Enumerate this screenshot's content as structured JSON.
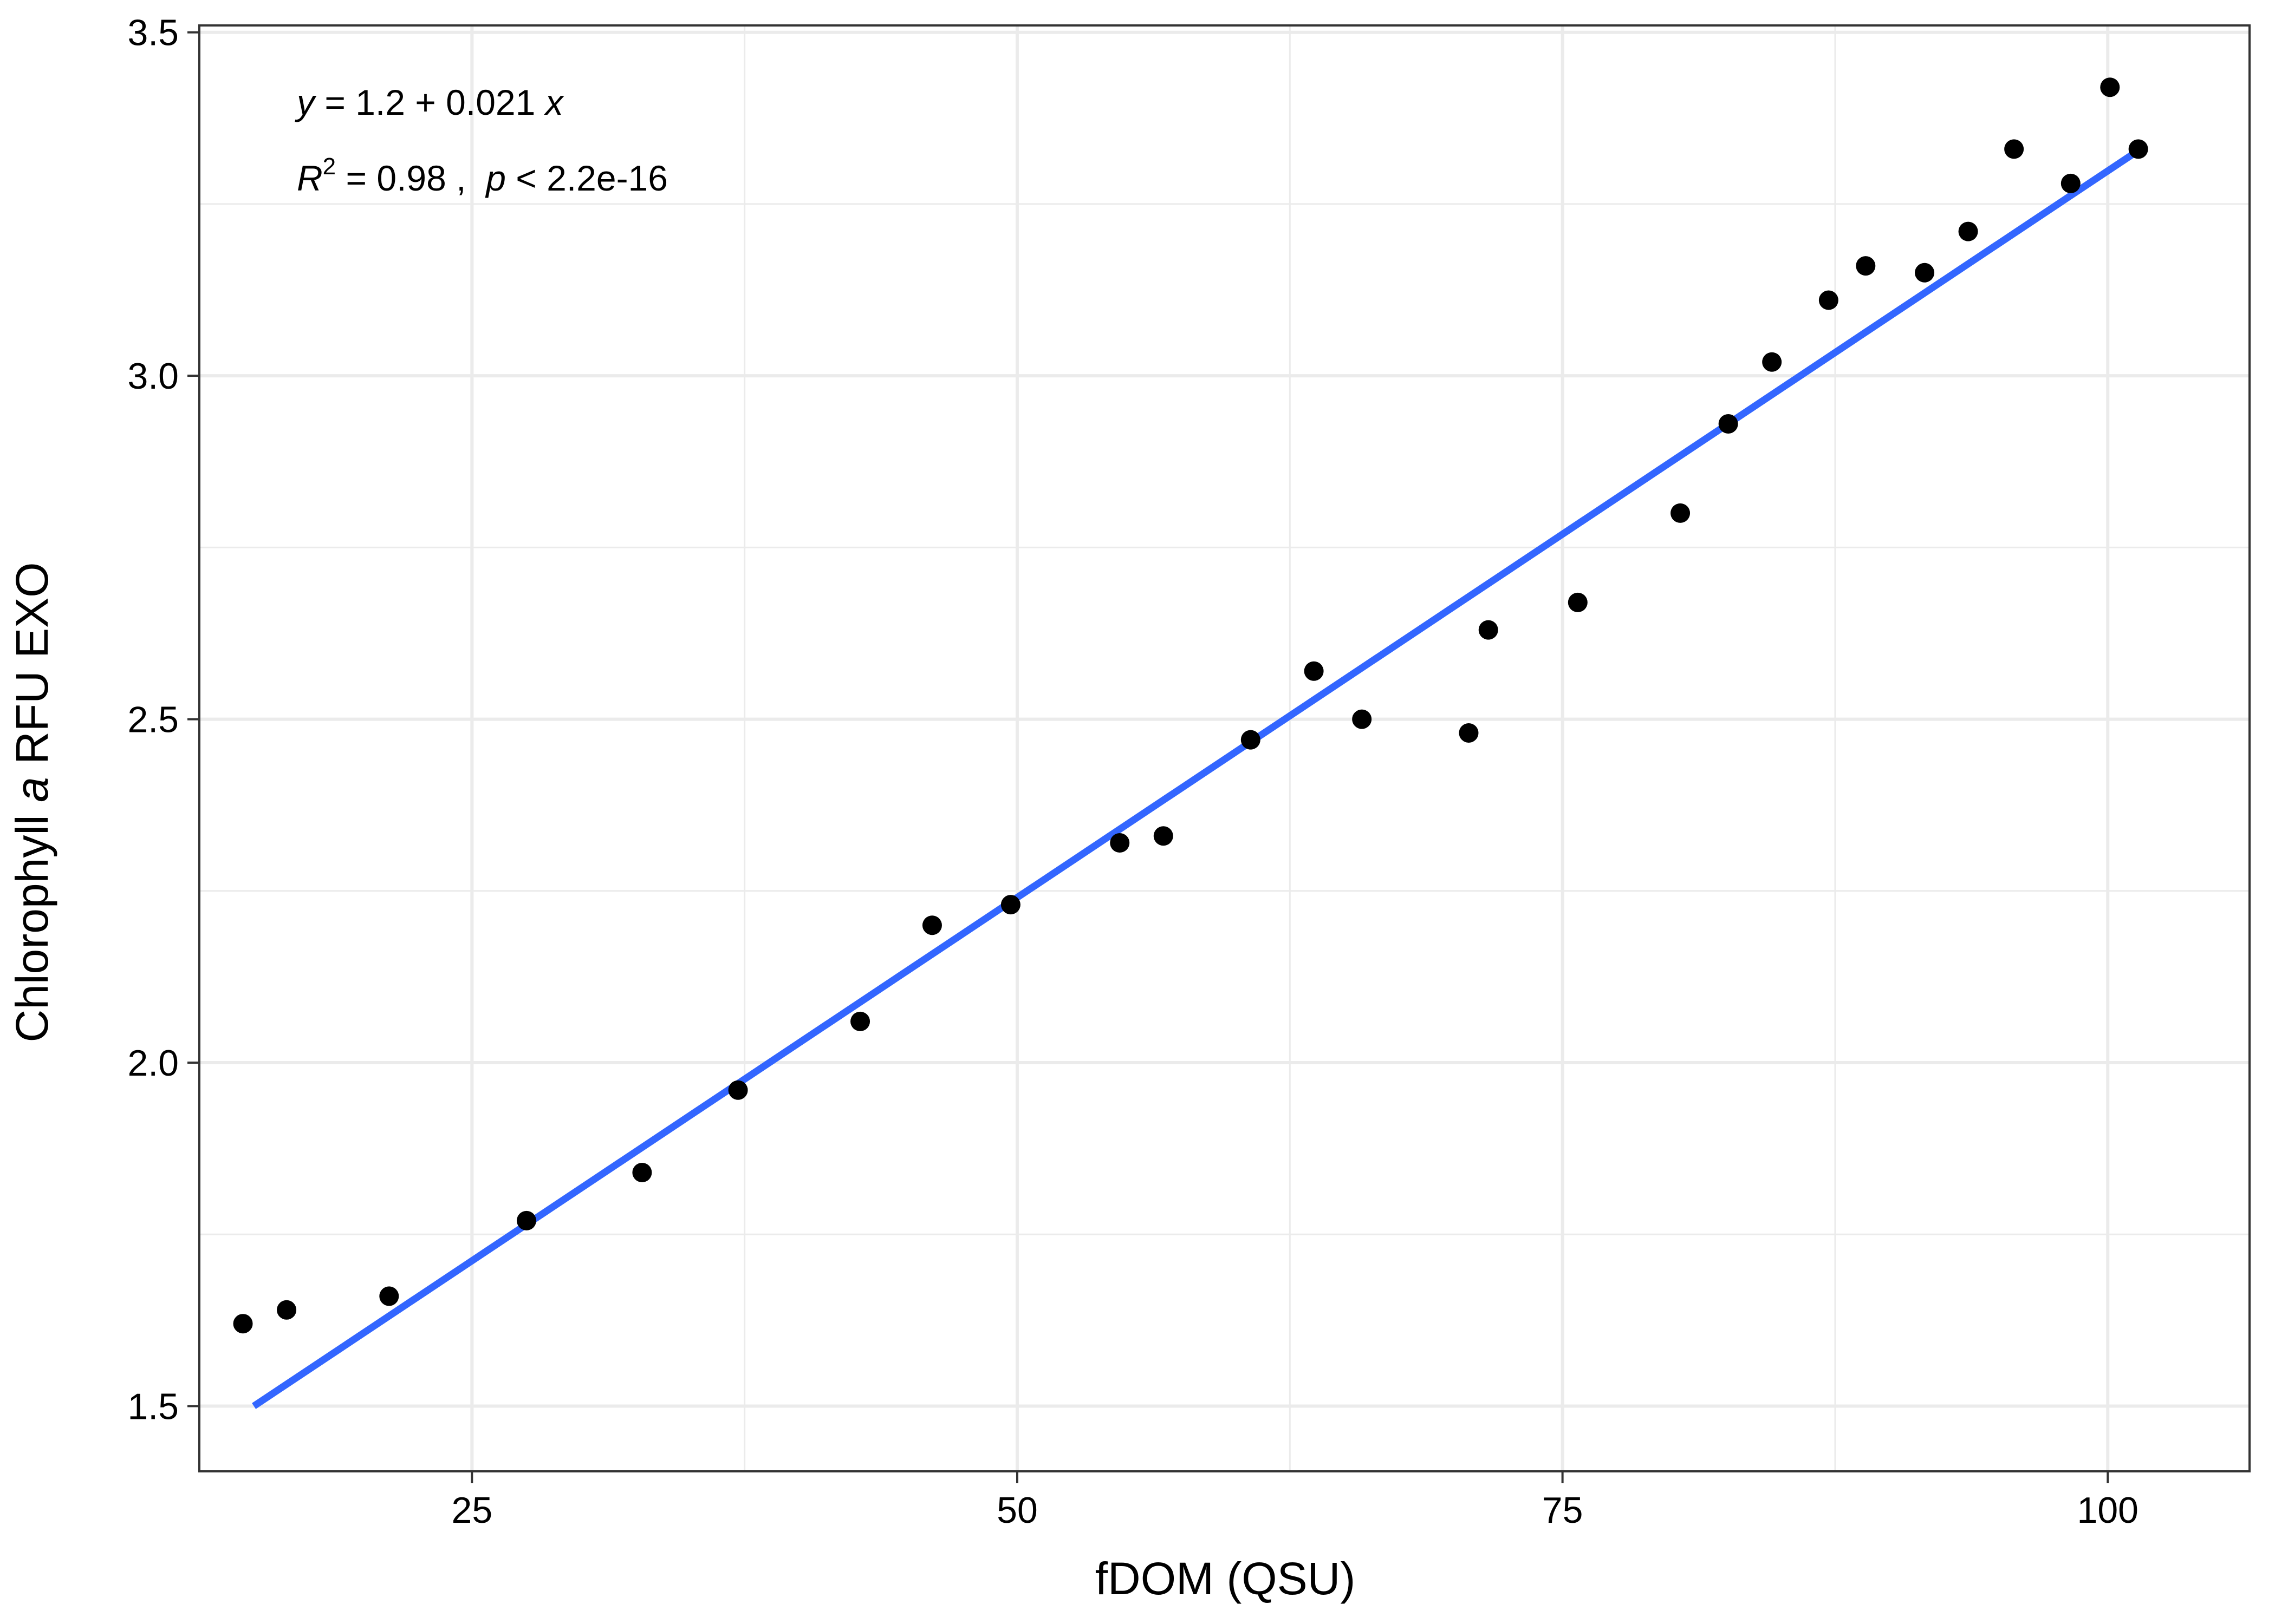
{
  "chart_data": {
    "type": "scatter",
    "title": "",
    "xlabel": "fDOM (QSU)",
    "ylabel": {
      "prefix": "Chlorophyll ",
      "italic": "a",
      "suffix": " RFU EXO"
    },
    "xlim": [
      12.5,
      106.5
    ],
    "ylim": [
      1.405,
      3.51
    ],
    "x_ticks": [
      25,
      50,
      75,
      100
    ],
    "x_tick_labels": [
      "25",
      "50",
      "75",
      "100"
    ],
    "y_ticks": [
      1.5,
      2.0,
      2.5,
      3.0,
      3.5
    ],
    "y_tick_labels": [
      "1.5",
      "2.0",
      "2.5",
      "3.0",
      "3.5"
    ],
    "x_minor_ticks": [
      12.5,
      37.5,
      62.5,
      87.5
    ],
    "y_minor_ticks": [
      1.75,
      2.25,
      2.75,
      3.25
    ],
    "grid": true,
    "legend": "none",
    "colors": {
      "points": "#000000",
      "fit_line": "#3366FF",
      "grid": "#EBEBEB",
      "panel_border": "#333333"
    },
    "annotation": {
      "line1": {
        "y": "y",
        "eq": " = 1.2 + 0.021 ",
        "x": "x"
      },
      "line2": {
        "r": "R",
        "sup": "2",
        "r2": " = 0.98 ,  ",
        "p": "p",
        "pv": " < 2.2e-16"
      }
    },
    "fit": {
      "intercept": 1.2,
      "slope": 0.021,
      "x_range": [
        15,
        101.5
      ],
      "y_range": [
        1.5,
        3.33
      ]
    },
    "points": [
      {
        "x": 14.5,
        "y": 1.62
      },
      {
        "x": 16.5,
        "y": 1.64
      },
      {
        "x": 21.2,
        "y": 1.66
      },
      {
        "x": 27.5,
        "y": 1.77
      },
      {
        "x": 32.8,
        "y": 1.84
      },
      {
        "x": 37.2,
        "y": 1.96
      },
      {
        "x": 42.8,
        "y": 2.06
      },
      {
        "x": 46.1,
        "y": 2.2
      },
      {
        "x": 49.7,
        "y": 2.23
      },
      {
        "x": 54.7,
        "y": 2.32
      },
      {
        "x": 56.7,
        "y": 2.33
      },
      {
        "x": 60.7,
        "y": 2.47
      },
      {
        "x": 63.6,
        "y": 2.57
      },
      {
        "x": 65.8,
        "y": 2.5
      },
      {
        "x": 70.7,
        "y": 2.48
      },
      {
        "x": 71.6,
        "y": 2.63
      },
      {
        "x": 75.7,
        "y": 2.67
      },
      {
        "x": 80.4,
        "y": 2.8
      },
      {
        "x": 82.6,
        "y": 2.93
      },
      {
        "x": 84.6,
        "y": 3.02
      },
      {
        "x": 87.2,
        "y": 3.11
      },
      {
        "x": 88.9,
        "y": 3.16
      },
      {
        "x": 91.6,
        "y": 3.15
      },
      {
        "x": 93.6,
        "y": 3.21
      },
      {
        "x": 95.7,
        "y": 3.33
      },
      {
        "x": 98.3,
        "y": 3.28
      },
      {
        "x": 100.1,
        "y": 3.42
      },
      {
        "x": 101.4,
        "y": 3.33
      }
    ]
  }
}
